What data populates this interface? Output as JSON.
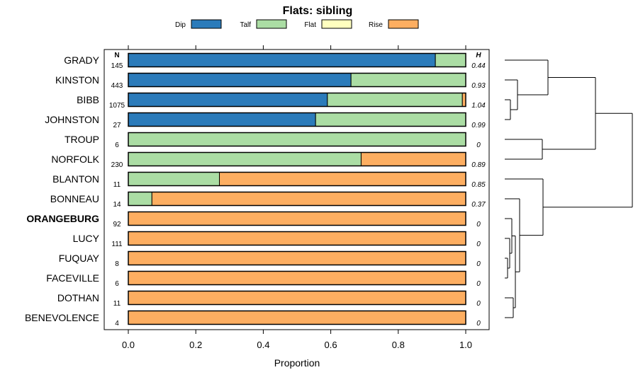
{
  "chart_data": {
    "type": "bar",
    "orientation": "horizontal",
    "stacked": true,
    "title": "Flats: sibling",
    "xlabel": "Proportion",
    "xlim": [
      0,
      1
    ],
    "xticks": [
      0.0,
      0.2,
      0.4,
      0.6,
      0.8,
      1.0
    ],
    "xtick_labels": [
      "0.0",
      "0.2",
      "0.4",
      "0.6",
      "0.8",
      "1.0"
    ],
    "n_header": "N",
    "h_header": "H",
    "legend_position": "top",
    "series": [
      {
        "name": "Dip",
        "color": "#2b7bba",
        "values": [
          0.91,
          0.66,
          0.59,
          0.555,
          0,
          0,
          0,
          0,
          0,
          0,
          0,
          0,
          0,
          0
        ]
      },
      {
        "name": "Talf",
        "color": "#abdda4",
        "values": [
          0.09,
          0.34,
          0.4,
          0.445,
          1.0,
          0.69,
          0.27,
          0.07,
          0,
          0,
          0,
          0,
          0,
          0
        ]
      },
      {
        "name": "Flat",
        "color": "#ffffbf",
        "values": [
          0,
          0,
          0,
          0,
          0,
          0,
          0,
          0,
          0,
          0,
          0,
          0,
          0,
          0
        ]
      },
      {
        "name": "Rise",
        "color": "#fdae61",
        "values": [
          0,
          0,
          0.01,
          0,
          0,
          0.31,
          0.73,
          0.93,
          1.0,
          1.0,
          1.0,
          1.0,
          1.0,
          1.0
        ]
      }
    ],
    "categories": [
      "GRADY",
      "KINSTON",
      "BIBB",
      "JOHNSTON",
      "TROUP",
      "NORFOLK",
      "BLANTON",
      "BONNEAU",
      "ORANGEBURG",
      "LUCY",
      "FUQUAY",
      "FACEVILLE",
      "DOTHAN",
      "BENEVOLENCE"
    ],
    "highlighted": "ORANGEBURG",
    "n": [
      "145",
      "443",
      "1075",
      "27",
      "6",
      "230",
      "11",
      "14",
      "92",
      "111",
      "8",
      "6",
      "11",
      "4"
    ],
    "h": [
      "0.44",
      "0.93",
      "1.04",
      "0.99",
      "0",
      "0.89",
      "0.85",
      "0.37",
      "0",
      "0",
      "0",
      "0",
      "0",
      "0"
    ]
  }
}
